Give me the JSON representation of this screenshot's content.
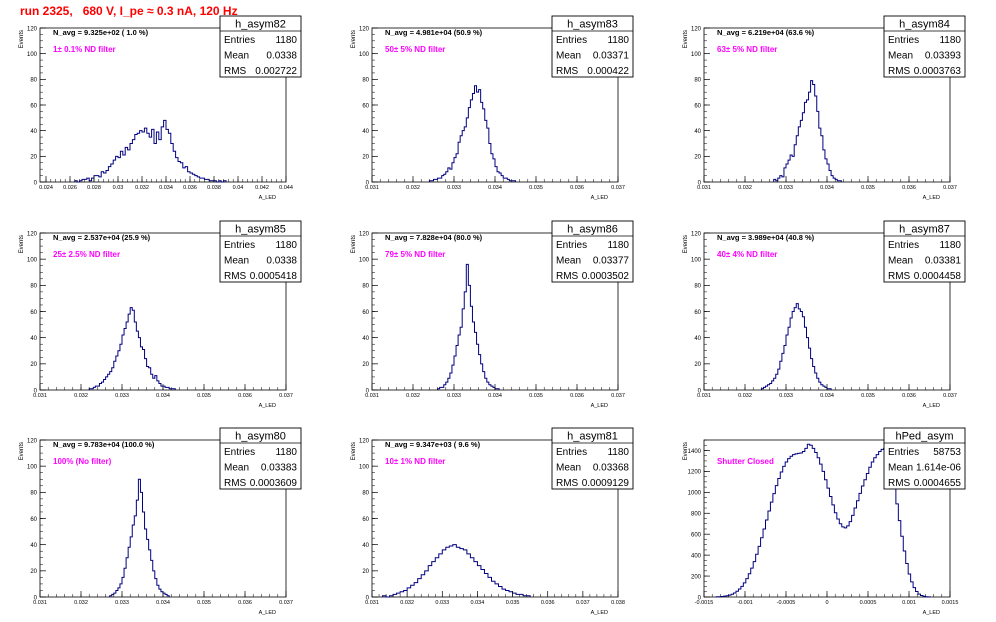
{
  "page_title": "run 2325,   680 V, I_pe ≈ 0.3 nA, 120 Hz",
  "chart_data": [
    {
      "type": "bar",
      "hist_name": "h_asym82",
      "entries": "1180",
      "mean": "0.0338",
      "rms": "0.002722",
      "navg": "N_avg = 9.325e+02 ( 1.0 %)",
      "filter": "1± 0.1% ND filter",
      "ylabel": "Events",
      "xlabel": "A_LED",
      "xlim": [
        0.0235,
        0.044
      ],
      "ylim": [
        0,
        120
      ],
      "xticks": [
        0.024,
        0.026,
        0.028,
        0.03,
        0.032,
        0.034,
        0.036,
        0.038,
        0.04,
        0.042,
        0.044
      ],
      "xtick_labels": [
        "0.024",
        "0.026",
        "0.028",
        "0.03",
        "0.032",
        "0.034",
        "0.036",
        "0.038",
        "0.04",
        "0.042",
        "0.044"
      ],
      "yticks": [
        0,
        20,
        40,
        60,
        80,
        100,
        120
      ],
      "bin_start": 0.0264,
      "bin_width": 0.0002,
      "values": [
        1,
        0,
        1,
        2,
        2,
        3,
        1,
        3,
        5,
        5,
        4,
        8,
        7,
        9,
        12,
        14,
        17,
        20,
        19,
        24,
        21,
        27,
        25,
        30,
        33,
        37,
        38,
        40,
        39,
        42,
        38,
        35,
        41,
        30,
        39,
        33,
        43,
        48,
        41,
        38,
        30,
        24,
        19,
        16,
        15,
        11,
        12,
        8,
        7,
        6,
        5,
        4,
        3,
        3,
        2,
        2,
        1,
        1,
        1,
        0,
        1,
        0,
        1
      ]
    },
    {
      "type": "bar",
      "hist_name": "h_asym83",
      "entries": "1180",
      "mean": "0.03371",
      "rms": "0.000422",
      "navg": "N_avg = 4.981e+04 (50.9 %)",
      "filter": "50± 5% ND filter",
      "ylabel": "Events",
      "xlabel": "A_LED",
      "xlim": [
        0.031,
        0.037
      ],
      "ylim": [
        0,
        120
      ],
      "xticks": [
        0.031,
        0.032,
        0.033,
        0.034,
        0.035,
        0.036,
        0.037
      ],
      "xtick_labels": [
        "0.031",
        "0.032",
        "0.033",
        "0.034",
        "0.035",
        "0.036",
        "0.037"
      ],
      "yticks": [
        0,
        20,
        40,
        60,
        80,
        100,
        120
      ],
      "bin_start": 0.0324,
      "bin_width": 5e-05,
      "values": [
        1,
        1,
        2,
        2,
        3,
        3,
        5,
        6,
        8,
        11,
        10,
        15,
        19,
        22,
        31,
        36,
        40,
        43,
        50,
        58,
        64,
        69,
        75,
        70,
        72,
        62,
        57,
        48,
        42,
        30,
        22,
        18,
        12,
        8,
        7,
        5,
        3,
        3,
        2,
        1,
        1,
        1
      ]
    },
    {
      "type": "bar",
      "hist_name": "h_asym84",
      "entries": "1180",
      "mean": "0.03393",
      "rms": "0.0003763",
      "navg": "N_avg = 6.219e+04 (63.6 %)",
      "filter": "63± 5% ND filter",
      "ylabel": "Events",
      "xlabel": "A_LED",
      "xlim": [
        0.031,
        0.037
      ],
      "ylim": [
        0,
        120
      ],
      "xticks": [
        0.031,
        0.032,
        0.033,
        0.034,
        0.035,
        0.036,
        0.037
      ],
      "xtick_labels": [
        "0.031",
        "0.032",
        "0.033",
        "0.034",
        "0.035",
        "0.036",
        "0.037"
      ],
      "yticks": [
        0,
        20,
        40,
        60,
        80,
        100,
        120
      ],
      "bin_start": 0.0327,
      "bin_width": 5e-05,
      "values": [
        2,
        1,
        3,
        5,
        4,
        11,
        14,
        17,
        21,
        20,
        29,
        36,
        43,
        48,
        54,
        62,
        64,
        70,
        79,
        76,
        67,
        55,
        42,
        36,
        25,
        18,
        14,
        9,
        5,
        3,
        2,
        1,
        1
      ]
    },
    {
      "type": "bar",
      "hist_name": "h_asym85",
      "entries": "1180",
      "mean": "0.0338",
      "rms": "0.0005418",
      "navg": "N_avg = 2.537e+04 (25.9 %)",
      "filter": "25± 2.5% ND filter",
      "ylabel": "Events",
      "xlabel": "A_LED",
      "xlim": [
        0.031,
        0.037
      ],
      "ylim": [
        0,
        120
      ],
      "xticks": [
        0.031,
        0.032,
        0.033,
        0.034,
        0.035,
        0.036,
        0.037
      ],
      "xtick_labels": [
        "0.031",
        "0.032",
        "0.033",
        "0.034",
        "0.035",
        "0.036",
        "0.037"
      ],
      "yticks": [
        0,
        20,
        40,
        60,
        80,
        100,
        120
      ],
      "bin_start": 0.0322,
      "bin_width": 5e-05,
      "values": [
        1,
        1,
        2,
        3,
        3,
        5,
        6,
        8,
        10,
        12,
        14,
        17,
        22,
        26,
        30,
        35,
        42,
        47,
        52,
        58,
        63,
        61,
        52,
        45,
        40,
        33,
        31,
        24,
        18,
        17,
        12,
        9,
        11,
        7,
        5,
        3,
        3,
        2,
        2,
        1,
        1,
        1
      ]
    },
    {
      "type": "bar",
      "hist_name": "h_asym86",
      "entries": "1180",
      "mean": "0.03377",
      "rms": "0.0003502",
      "navg": "N_avg = 7.828e+04 (80.0 %)",
      "filter": "79± 5% ND filter",
      "ylabel": "Events",
      "xlabel": "A_LED",
      "xlim": [
        0.031,
        0.037
      ],
      "ylim": [
        0,
        120
      ],
      "xticks": [
        0.031,
        0.032,
        0.033,
        0.034,
        0.035,
        0.036,
        0.037
      ],
      "xtick_labels": [
        "0.031",
        "0.032",
        "0.033",
        "0.034",
        "0.035",
        "0.036",
        "0.037"
      ],
      "yticks": [
        0,
        20,
        40,
        60,
        80,
        100,
        120
      ],
      "bin_start": 0.0326,
      "bin_width": 5e-05,
      "values": [
        1,
        2,
        2,
        4,
        6,
        9,
        13,
        19,
        26,
        34,
        42,
        48,
        62,
        75,
        96,
        80,
        64,
        52,
        44,
        35,
        27,
        20,
        14,
        9,
        6,
        4,
        3,
        2,
        1,
        1
      ]
    },
    {
      "type": "bar",
      "hist_name": "h_asym87",
      "entries": "1180",
      "mean": "0.03381",
      "rms": "0.0004458",
      "navg": "N_avg = 3.989e+04 (40.8 %)",
      "filter": "40± 4% ND filter",
      "ylabel": "Events",
      "xlabel": "A_LED",
      "xlim": [
        0.031,
        0.037
      ],
      "ylim": [
        0,
        120
      ],
      "xticks": [
        0.031,
        0.032,
        0.033,
        0.034,
        0.035,
        0.036,
        0.037
      ],
      "xtick_labels": [
        "0.031",
        "0.032",
        "0.033",
        "0.034",
        "0.035",
        "0.036",
        "0.037"
      ],
      "yticks": [
        0,
        20,
        40,
        60,
        80,
        100,
        120
      ],
      "bin_start": 0.0324,
      "bin_width": 5e-05,
      "values": [
        1,
        2,
        3,
        4,
        5,
        7,
        9,
        12,
        16,
        22,
        28,
        34,
        42,
        48,
        55,
        60,
        63,
        66,
        62,
        60,
        56,
        48,
        40,
        32,
        24,
        18,
        13,
        9,
        6,
        4,
        3,
        2,
        1,
        1
      ]
    },
    {
      "type": "bar",
      "hist_name": "h_asym80",
      "entries": "1180",
      "mean": "0.03383",
      "rms": "0.0003609",
      "navg": "N_avg = 9.783e+04 (100.0 %)",
      "filter": "100% (No filter)",
      "ylabel": "Events",
      "xlabel": "A_LED",
      "xlim": [
        0.031,
        0.037
      ],
      "ylim": [
        0,
        120
      ],
      "xticks": [
        0.031,
        0.032,
        0.033,
        0.034,
        0.035,
        0.036,
        0.037
      ],
      "xtick_labels": [
        "0.031",
        "0.032",
        "0.033",
        "0.034",
        "0.035",
        "0.036",
        "0.037"
      ],
      "yticks": [
        0,
        20,
        40,
        60,
        80,
        100,
        120
      ],
      "bin_start": 0.0327,
      "bin_width": 5e-05,
      "values": [
        1,
        2,
        3,
        5,
        7,
        10,
        15,
        22,
        30,
        38,
        46,
        55,
        62,
        74,
        90,
        80,
        65,
        52,
        44,
        36,
        28,
        20,
        14,
        9,
        6,
        4,
        3,
        2,
        1
      ]
    },
    {
      "type": "bar",
      "hist_name": "h_asym81",
      "entries": "1180",
      "mean": "0.03368",
      "rms": "0.0009129",
      "navg": "N_avg = 9.347e+03 ( 9.6 %)",
      "filter": "10± 1% ND filter",
      "ylabel": "Events",
      "xlabel": "A_LED",
      "xlim": [
        0.031,
        0.038
      ],
      "ylim": [
        0,
        120
      ],
      "xticks": [
        0.031,
        0.032,
        0.033,
        0.034,
        0.035,
        0.036,
        0.037,
        0.038
      ],
      "xtick_labels": [
        "0.031",
        "0.032",
        "0.033",
        "0.034",
        "0.035",
        "0.036",
        "0.037",
        "0.038"
      ],
      "yticks": [
        0,
        20,
        40,
        60,
        80,
        100,
        120
      ],
      "bin_start": 0.0313,
      "bin_width": 0.0001,
      "values": [
        1,
        0,
        1,
        2,
        3,
        4,
        5,
        7,
        9,
        11,
        14,
        17,
        20,
        24,
        27,
        30,
        33,
        36,
        38,
        39,
        40,
        38,
        37,
        36,
        33,
        30,
        27,
        24,
        21,
        18,
        15,
        12,
        10,
        8,
        6,
        5,
        4,
        3,
        2,
        2,
        1,
        1
      ]
    },
    {
      "type": "bar",
      "hist_name": "hPed_asym",
      "entries": "58753",
      "mean": "1.614e-06",
      "rms": "0.0004655",
      "navg": "",
      "filter": "Shutter Closed",
      "ylabel": "Events",
      "xlabel": "A_LED",
      "xlim": [
        -0.0015,
        0.0015
      ],
      "ylim": [
        0,
        1500
      ],
      "xticks": [
        -0.0015,
        -0.001,
        -0.0005,
        0,
        0.0005,
        0.001,
        0.0015
      ],
      "xtick_labels": [
        "-0.0015",
        "-0.001",
        "-0.0005",
        "0",
        "0.0005",
        "0.001",
        "0.0015"
      ],
      "yticks": [
        0,
        200,
        400,
        600,
        800,
        1000,
        1200,
        1400
      ],
      "bin_start": -0.00135,
      "bin_width": 3e-05,
      "values": [
        2,
        3,
        5,
        8,
        12,
        18,
        26,
        38,
        55,
        76,
        102,
        135,
        175,
        222,
        276,
        338,
        408,
        484,
        566,
        650,
        736,
        822,
        906,
        988,
        1064,
        1132,
        1194,
        1248,
        1290,
        1322,
        1345,
        1360,
        1368,
        1372,
        1376,
        1390,
        1420,
        1460,
        1450,
        1420,
        1380,
        1330,
        1270,
        1200,
        1120,
        1040,
        960,
        880,
        805,
        745,
        700,
        670,
        660,
        680,
        720,
        780,
        850,
        920,
        990,
        1060,
        1120,
        1180,
        1240,
        1290,
        1330,
        1360,
        1390,
        1410,
        1420,
        1380,
        1300,
        1190,
        1050,
        890,
        730,
        580,
        440,
        320,
        220,
        145,
        90,
        52,
        28,
        14,
        7,
        3,
        1
      ]
    }
  ]
}
